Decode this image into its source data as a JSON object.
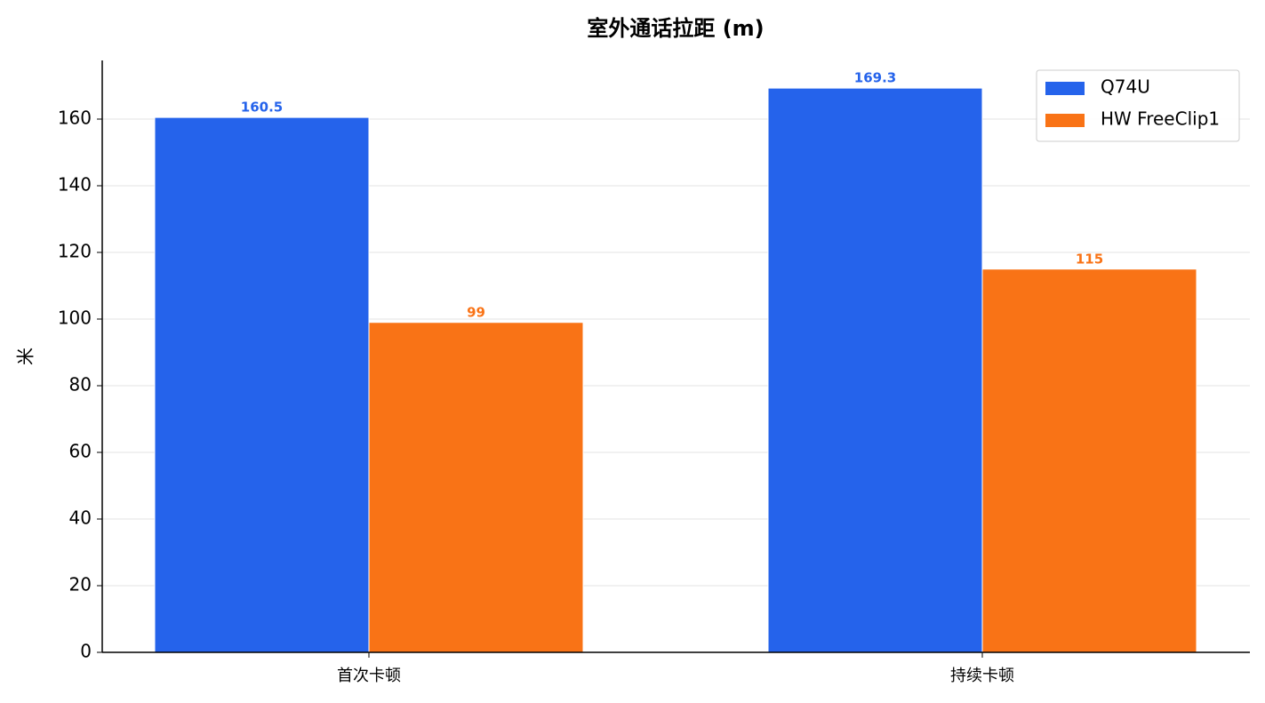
{
  "chart_data": {
    "type": "bar",
    "title": "室外通话拉距 (m)",
    "y_label": "米",
    "categories": [
      "首次卡顿",
      "持续卡顿"
    ],
    "series": [
      {
        "name": "Q74U",
        "color": "#2563eb",
        "values": [
          160.5,
          169.3
        ]
      },
      {
        "name": "HW FreeClip1",
        "color": "#f97316",
        "values": [
          99,
          115
        ]
      }
    ],
    "ylim": [
      0,
      177.6
    ],
    "yticks": [
      0,
      20,
      40,
      60,
      80,
      100,
      120,
      140,
      160
    ],
    "grid": true,
    "legend": "upper right"
  }
}
